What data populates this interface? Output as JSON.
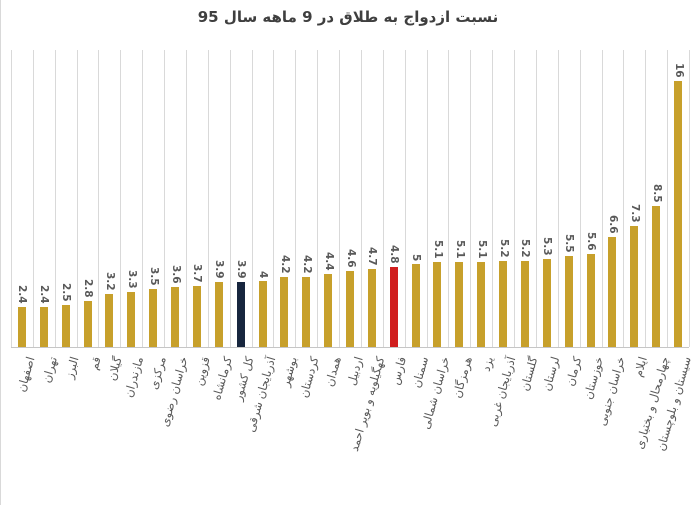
{
  "title": "نسبت ازدواج به طلاق در 9 ماهه سال 95",
  "chart_data": {
    "type": "bar",
    "title": "نسبت ازدواج به طلاق در 9 ماهه سال 95",
    "xlabel": "",
    "ylabel": "",
    "ylim": [
      0,
      18
    ],
    "legend": "none",
    "grid": "vertical category separators only",
    "value_labels": "rotated 90deg above each bar",
    "category_labels": "rotated ~74deg below axis",
    "categories": [
      "اصفهان",
      "تهران",
      "البرز",
      "قم",
      "گیلان",
      "مازندران",
      "مرکزی",
      "خراسان رضوی",
      "قزوین",
      "کرمانشاه",
      "کل کشور",
      "آذربایجان شرقی",
      "بوشهر",
      "کردستان",
      "همدان",
      "اردبیل",
      "کهگیلویه و بویر احمد",
      "فارس",
      "سمنان",
      "خراسان شمالی",
      "هرمزگان",
      "یزد",
      "آذربایجان غربی",
      "گلستان",
      "لرستان",
      "کرمان",
      "خوزستان",
      "خراسان جنوبی",
      "ایلام",
      "چهارمحال و بختیاری",
      "سیستان و بلوچستان"
    ],
    "values": [
      2.4,
      2.4,
      2.5,
      2.8,
      3.2,
      3.3,
      3.5,
      3.6,
      3.7,
      3.9,
      3.9,
      4,
      4.2,
      4.2,
      4.4,
      4.6,
      4.7,
      4.8,
      5,
      5.1,
      5.1,
      5.1,
      5.2,
      5.2,
      5.3,
      5.5,
      5.6,
      6.6,
      7.3,
      8.5,
      16
    ],
    "colors": [
      "#c7a02b",
      "#c7a02b",
      "#c7a02b",
      "#c7a02b",
      "#c7a02b",
      "#c7a02b",
      "#c7a02b",
      "#c7a02b",
      "#c7a02b",
      "#c7a02b",
      "#17263e",
      "#c7a02b",
      "#c7a02b",
      "#c7a02b",
      "#c7a02b",
      "#c7a02b",
      "#c7a02b",
      "#d01e1e",
      "#c7a02b",
      "#c7a02b",
      "#c7a02b",
      "#c7a02b",
      "#c7a02b",
      "#c7a02b",
      "#c7a02b",
      "#c7a02b",
      "#c7a02b",
      "#c7a02b",
      "#c7a02b",
      "#c7a02b",
      "#c7a02b"
    ],
    "highlight_colors": {
      "default_bar": "#c7a02b",
      "country_total_bar": "#17263e",
      "fars_bar": "#d01e1e"
    }
  }
}
